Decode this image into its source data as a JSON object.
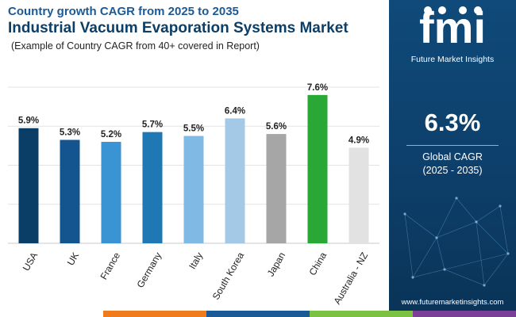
{
  "header": {
    "subtitle": "Country growth CAGR from 2025 to 2035",
    "title": "Industrial Vacuum Evaporation Systems Market",
    "note": "(Example of Country CAGR from 40+ covered in Report)"
  },
  "chart_data": {
    "type": "bar",
    "title": "Industrial Vacuum Evaporation Systems Market",
    "subtitle": "Country growth CAGR from 2025 to 2035",
    "categories": [
      "USA",
      "UK",
      "France",
      "Germany",
      "Italy",
      "South Korea",
      "Japan",
      "China",
      "Australia - NZ"
    ],
    "values": [
      5.9,
      5.3,
      5.2,
      5.7,
      5.5,
      6.4,
      5.6,
      7.6,
      4.9
    ],
    "value_labels": [
      "5.9%",
      "5.3%",
      "5.2%",
      "5.7%",
      "5.5%",
      "6.4%",
      "5.6%",
      "7.6%",
      "4.9%"
    ],
    "colors": [
      "#0b3e66",
      "#14558f",
      "#3a93d3",
      "#1f77b4",
      "#80b9e3",
      "#a4c9e6",
      "#a6a6a6",
      "#2aa836",
      "#e2e2e2"
    ],
    "xlabel": "",
    "ylabel": "",
    "ylim": [
      0,
      8
    ],
    "grid": true,
    "legend": "none"
  },
  "sidebar": {
    "logo_text": "fmi",
    "brand": "Future Market Insights",
    "global_value": "6.3%",
    "global_label": "Global CAGR",
    "global_period": "(2025 - 2035)",
    "url": "www.futuremarketinsights.com"
  },
  "bottom_bar_colors": [
    "#ffffff",
    "#f07b1d",
    "#1c5a96",
    "#7cc242",
    "#7b3f98"
  ],
  "accent_colors": {
    "panel": "#0d3f6a",
    "title": "#0d3e66"
  }
}
